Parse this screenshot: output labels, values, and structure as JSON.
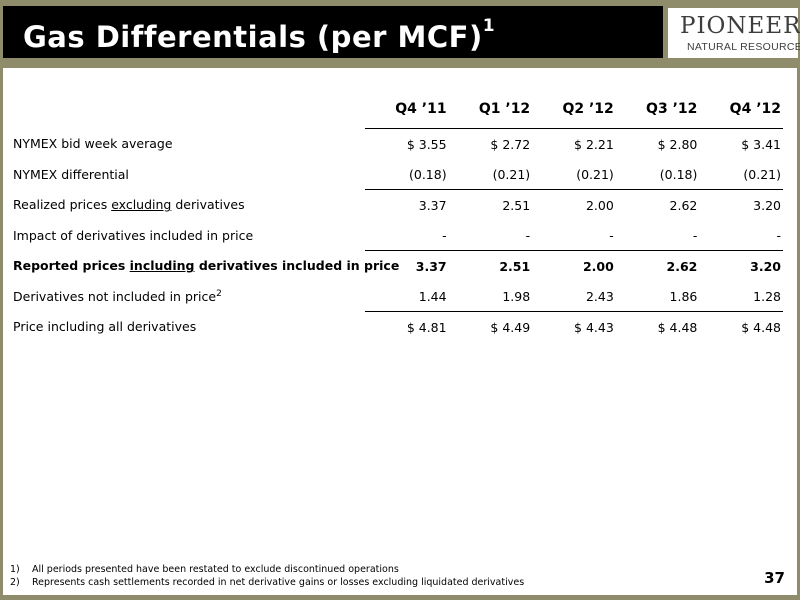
{
  "title": {
    "text": "Gas Differentials (per MCF)",
    "sup": "1"
  },
  "logo": {
    "main": "PIONEER",
    "sub": "NATURAL RESOURCES"
  },
  "table": {
    "columns": [
      "Q4 ’11",
      "Q1 ’12",
      "Q2 ’12",
      "Q3 ’12",
      "Q4 ’12"
    ],
    "rows": [
      {
        "label": "NYMEX bid week average",
        "values": [
          "$ 3.55",
          "$ 2.72",
          "$ 2.21",
          "$ 2.80",
          "$ 3.41"
        ]
      },
      {
        "label": "NYMEX differential",
        "values": [
          "(0.18)",
          "(0.21)",
          "(0.21)",
          "(0.18)",
          "(0.21)"
        ]
      },
      {
        "label_pre": "Realized prices ",
        "label_u": "excluding",
        "label_post": " derivatives",
        "values": [
          "3.37",
          "2.51",
          "2.00",
          "2.62",
          "3.20"
        ]
      },
      {
        "label": "Impact of derivatives included in price",
        "values": [
          "-",
          "-",
          "-",
          "-",
          "-"
        ]
      },
      {
        "label_pre": "Reported prices ",
        "label_u": "including",
        "label_post": " derivatives included in price",
        "values": [
          "3.37",
          "2.51",
          "2.00",
          "2.62",
          "3.20"
        ]
      },
      {
        "label": "Derivatives not included in price",
        "label_sup": "2",
        "values": [
          "1.44",
          "1.98",
          "2.43",
          "1.86",
          "1.28"
        ]
      },
      {
        "label": "Price including all derivatives",
        "values": [
          "$ 4.81",
          "$ 4.49",
          "$ 4.43",
          "$ 4.48",
          "$ 4.48"
        ]
      }
    ]
  },
  "footnotes": [
    {
      "num": "1)",
      "text": "All periods presented have been restated to exclude discontinued operations"
    },
    {
      "num": "2)",
      "text": "Represents cash settlements recorded in net derivative gains or losses excluding liquidated derivatives"
    }
  ],
  "page_number": "37",
  "colors": {
    "frame": "#8e8c6a",
    "title_bar": "#000000",
    "title_text": "#ffffff"
  }
}
